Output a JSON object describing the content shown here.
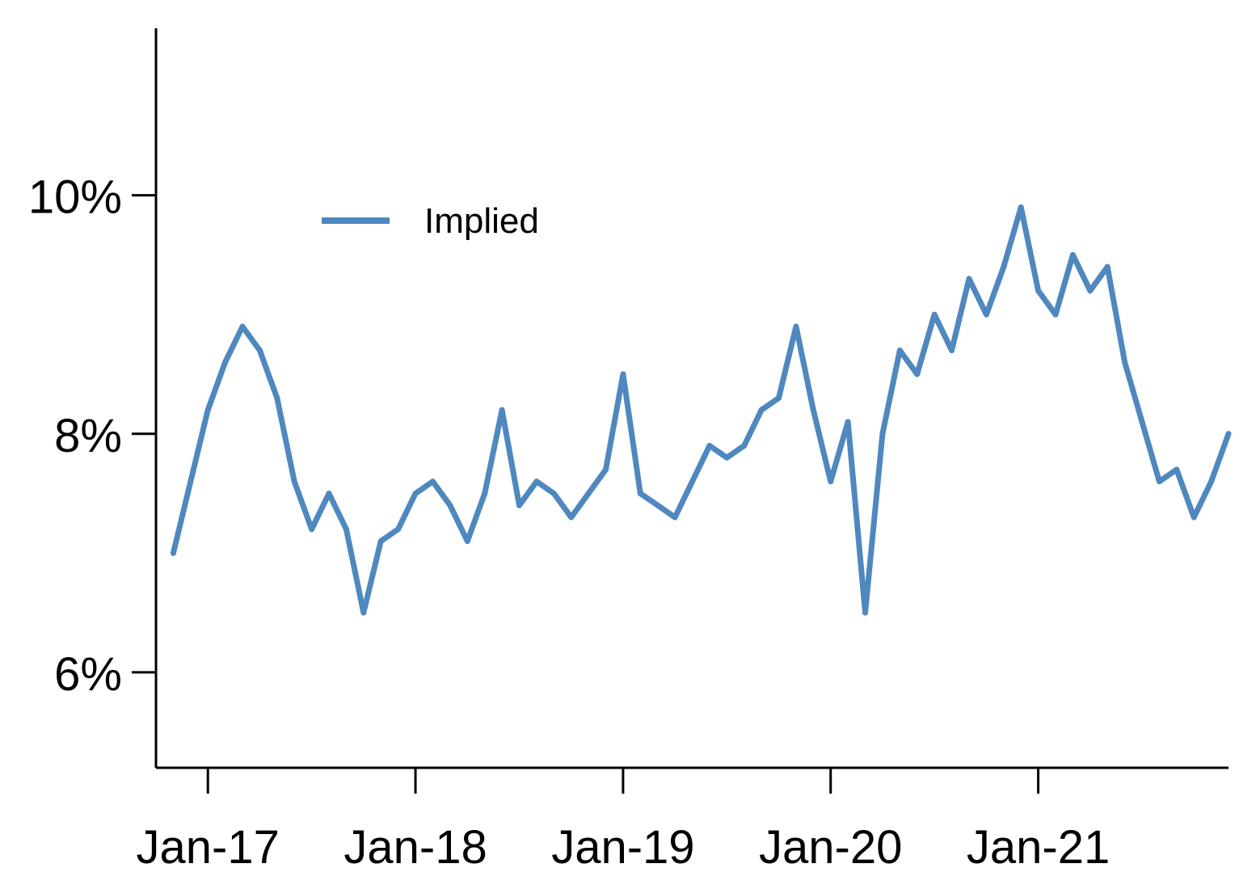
{
  "chart_data": {
    "type": "line",
    "title": "",
    "xlabel": "",
    "ylabel": "",
    "x_tick_labels": [
      "Jan-17",
      "Jan-18",
      "Jan-19",
      "Jan-20",
      "Jan-21"
    ],
    "x_tick_dates": [
      "2017-01",
      "2018-01",
      "2019-01",
      "2020-01",
      "2021-01"
    ],
    "y_tick_labels": [
      "6%",
      "8%",
      "10%"
    ],
    "y_tick_values": [
      6,
      8,
      10
    ],
    "xlim": [
      "2016-10",
      "2021-12"
    ],
    "ylim": [
      5.2,
      11.4
    ],
    "grid": false,
    "legend_position": "top-left",
    "series": [
      {
        "name": "Implied",
        "color": "#4F88BF",
        "x": [
          "2016-11",
          "2016-12",
          "2017-01",
          "2017-02",
          "2017-03",
          "2017-04",
          "2017-05",
          "2017-06",
          "2017-07",
          "2017-08",
          "2017-09",
          "2017-10",
          "2017-11",
          "2017-12",
          "2018-01",
          "2018-02",
          "2018-03",
          "2018-04",
          "2018-05",
          "2018-06",
          "2018-07",
          "2018-08",
          "2018-09",
          "2018-10",
          "2018-11",
          "2018-12",
          "2019-01",
          "2019-02",
          "2019-03",
          "2019-04",
          "2019-05",
          "2019-06",
          "2019-07",
          "2019-08",
          "2019-09",
          "2019-10",
          "2019-11",
          "2019-12",
          "2020-01",
          "2020-02",
          "2020-03",
          "2020-04",
          "2020-05",
          "2020-06",
          "2020-07",
          "2020-08",
          "2020-09",
          "2020-10",
          "2020-11",
          "2020-12",
          "2021-01",
          "2021-02",
          "2021-03",
          "2021-04",
          "2021-05",
          "2021-06",
          "2021-07",
          "2021-08",
          "2021-09",
          "2021-10",
          "2021-11",
          "2021-12"
        ],
        "y": [
          7.0,
          7.6,
          8.2,
          8.6,
          8.9,
          8.7,
          8.3,
          7.6,
          7.2,
          7.5,
          7.2,
          6.5,
          7.1,
          7.2,
          7.5,
          7.6,
          7.4,
          7.1,
          7.5,
          8.2,
          7.4,
          7.6,
          7.5,
          7.3,
          7.5,
          7.7,
          8.5,
          7.5,
          7.4,
          7.3,
          7.6,
          7.9,
          7.8,
          7.9,
          8.2,
          8.3,
          8.9,
          8.2,
          7.6,
          8.1,
          6.5,
          8.0,
          8.7,
          8.5,
          9.0,
          8.7,
          9.3,
          9.0,
          9.4,
          9.9,
          9.2,
          9.0,
          9.5,
          9.2,
          9.4,
          8.6,
          8.1,
          7.6,
          7.7,
          7.3,
          7.6,
          8.0
        ]
      }
    ]
  }
}
